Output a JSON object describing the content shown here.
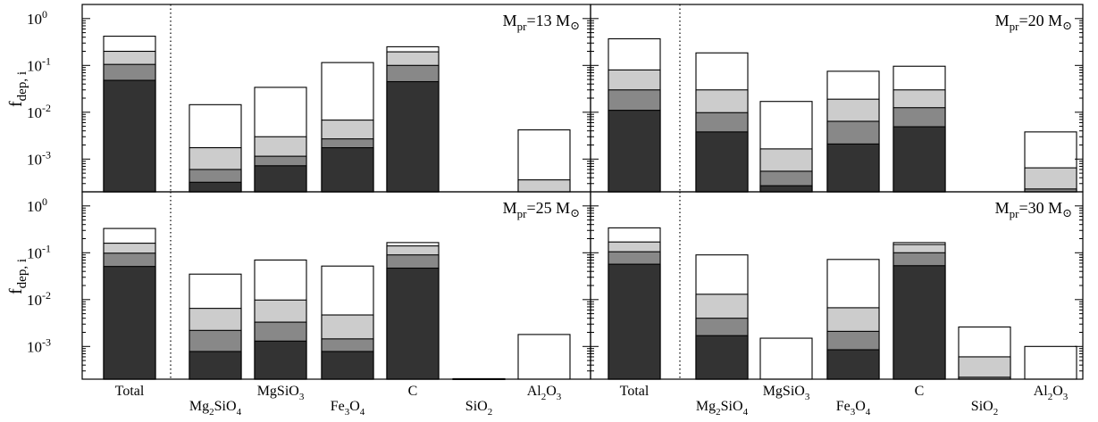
{
  "chart_data": {
    "type": "bar",
    "stacking": "nested-overlapping",
    "y_scale": "log",
    "ylim": [
      0.0002,
      2
    ],
    "ylabel": {
      "main": "f",
      "sub": "dep, i"
    },
    "y_ticks": [
      {
        "value": 1,
        "base": "10",
        "exp": "0"
      },
      {
        "value": 0.1,
        "base": "10",
        "exp": "-1"
      },
      {
        "value": 0.01,
        "base": "10",
        "exp": "-2"
      },
      {
        "value": 0.001,
        "base": "10",
        "exp": "-3"
      }
    ],
    "categories": [
      {
        "id": "Total",
        "parts": [
          [
            "Total",
            ""
          ]
        ]
      },
      {
        "id": "Mg2SiO4",
        "parts": [
          [
            "Mg",
            ""
          ],
          [
            "2",
            "sub"
          ],
          [
            "SiO",
            ""
          ],
          [
            "4",
            "sub"
          ]
        ]
      },
      {
        "id": "MgSiO3",
        "parts": [
          [
            "MgSiO",
            ""
          ],
          [
            "3",
            "sub"
          ]
        ]
      },
      {
        "id": "Fe3O4",
        "parts": [
          [
            "Fe",
            ""
          ],
          [
            "3",
            "sub"
          ],
          [
            "O",
            ""
          ],
          [
            "4",
            "sub"
          ]
        ]
      },
      {
        "id": "C",
        "parts": [
          [
            "C",
            ""
          ]
        ]
      },
      {
        "id": "SiO2",
        "parts": [
          [
            "SiO",
            ""
          ],
          [
            "2",
            "sub"
          ]
        ]
      },
      {
        "id": "Al2O3",
        "parts": [
          [
            "Al",
            ""
          ],
          [
            "2",
            "sub"
          ],
          [
            "O",
            ""
          ],
          [
            "3",
            "sub"
          ]
        ]
      }
    ],
    "layer_colors": [
      "#ffffff",
      "#cccccc",
      "#888888",
      "#333333"
    ],
    "panels": [
      {
        "title": {
          "prefix": "M",
          "sub": "pr",
          "value": "=13 M",
          "symbol": "⊙"
        },
        "bars": [
          [
            0.42,
            0.2,
            0.105,
            0.048
          ],
          [
            0.0145,
            0.00175,
            0.0006,
            0.00032
          ],
          [
            0.034,
            0.003,
            0.00115,
            0.00072
          ],
          [
            0.115,
            0.0068,
            0.0027,
            0.00175
          ],
          [
            0.25,
            0.195,
            0.1,
            0.045
          ],
          [
            null,
            null,
            null,
            null
          ],
          [
            0.0042,
            0.00036,
            null,
            null
          ]
        ]
      },
      {
        "title": {
          "prefix": "M",
          "sub": "pr",
          "value": "=20 M",
          "symbol": "⊙"
        },
        "bars": [
          [
            0.37,
            0.08,
            0.03,
            0.011
          ],
          [
            0.185,
            0.03,
            0.0098,
            0.0038
          ],
          [
            0.017,
            0.00165,
            0.00055,
            0.00027
          ],
          [
            0.075,
            0.019,
            0.0064,
            0.0021
          ],
          [
            0.096,
            0.03,
            0.0125,
            0.0049
          ],
          [
            null,
            null,
            null,
            null
          ],
          [
            0.0038,
            0.00065,
            0.00023,
            null
          ]
        ]
      },
      {
        "title": {
          "prefix": "M",
          "sub": "pr",
          "value": "=25 M",
          "symbol": "⊙"
        },
        "bars": [
          [
            0.33,
            0.16,
            0.098,
            0.051
          ],
          [
            0.035,
            0.0065,
            0.0022,
            0.00078
          ],
          [
            0.07,
            0.0098,
            0.0033,
            0.0013
          ],
          [
            0.052,
            0.0047,
            0.00145,
            0.00078
          ],
          [
            0.165,
            0.14,
            0.09,
            0.047
          ],
          [
            0.000205,
            null,
            null,
            null
          ],
          [
            0.0018,
            null,
            null,
            null
          ]
        ]
      },
      {
        "title": {
          "prefix": "M",
          "sub": "pr",
          "value": "=30 M",
          "symbol": "⊙"
        },
        "bars": [
          [
            0.34,
            0.17,
            0.105,
            0.057
          ],
          [
            0.09,
            0.013,
            0.004,
            0.0017
          ],
          [
            0.0015,
            null,
            null,
            null
          ],
          [
            0.072,
            0.0067,
            0.0021,
            0.00085
          ],
          [
            0.165,
            0.15,
            0.1,
            0.053
          ],
          [
            0.0026,
            0.0006,
            0.00022,
            null
          ],
          [
            0.001,
            null,
            null,
            null
          ]
        ]
      }
    ]
  }
}
